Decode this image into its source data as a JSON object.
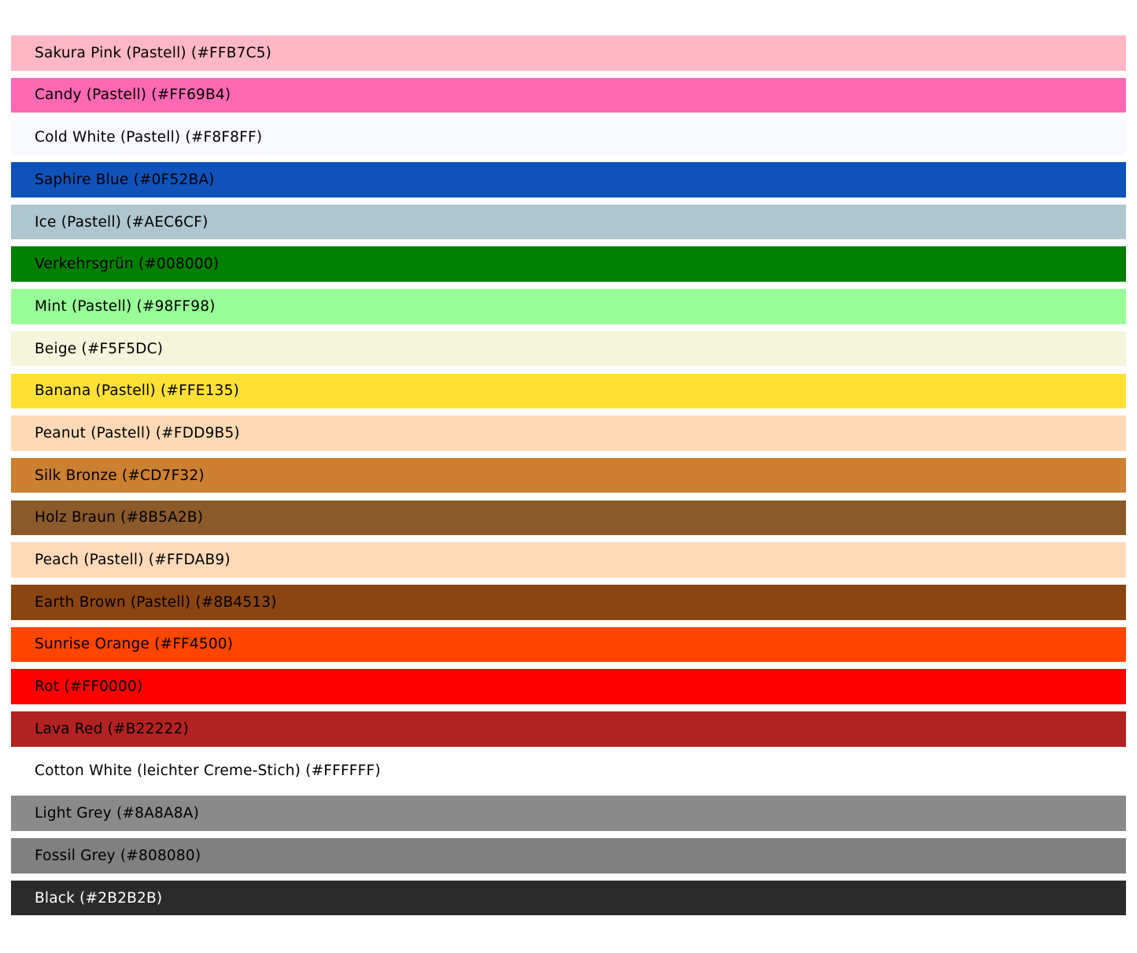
{
  "page": {
    "background": "#FFFFFF"
  },
  "palette": {
    "rows": [
      {
        "name": "Sakura Pink (Pastell)",
        "hex": "#FFB7C5",
        "label": "Sakura Pink (Pastell) (#FFB7C5)",
        "color": "#FFB7C5",
        "text_color": "#000000"
      },
      {
        "name": "Candy (Pastell)",
        "hex": "#FF69B4",
        "label": "Candy (Pastell) (#FF69B4)",
        "color": "#FF69B4",
        "text_color": "#000000"
      },
      {
        "name": "Cold White (Pastell)",
        "hex": "#F8F8FF",
        "label": "Cold White (Pastell) (#F8F8FF)",
        "color": "#F8F8FF",
        "text_color": "#000000"
      },
      {
        "name": "Saphire Blue",
        "hex": "#0F52BA",
        "label": "Saphire Blue (#0F52BA)",
        "color": "#0F52BA",
        "text_color": "#000000"
      },
      {
        "name": "Ice (Pastell)",
        "hex": "#AEC6CF",
        "label": "Ice (Pastell) (#AEC6CF)",
        "color": "#AEC6CF",
        "text_color": "#000000"
      },
      {
        "name": "Verkehrsgrün",
        "hex": "#008000",
        "label": "Verkehrsgrün (#008000)",
        "color": "#008000",
        "text_color": "#000000"
      },
      {
        "name": "Mint (Pastell)",
        "hex": "#98FF98",
        "label": "Mint (Pastell) (#98FF98)",
        "color": "#98FF98",
        "text_color": "#000000"
      },
      {
        "name": "Beige",
        "hex": "#F5F5DC",
        "label": "Beige (#F5F5DC)",
        "color": "#F5F5DC",
        "text_color": "#000000"
      },
      {
        "name": "Banana (Pastell)",
        "hex": "#FFE135",
        "label": "Banana (Pastell) (#FFE135)",
        "color": "#FFE135",
        "text_color": "#000000"
      },
      {
        "name": "Peanut (Pastell)",
        "hex": "#FDD9B5",
        "label": "Peanut (Pastell) (#FDD9B5)",
        "color": "#FDD9B5",
        "text_color": "#000000"
      },
      {
        "name": "Silk Bronze",
        "hex": "#CD7F32",
        "label": "Silk Bronze (#CD7F32)",
        "color": "#CD7F32",
        "text_color": "#000000"
      },
      {
        "name": "Holz Braun",
        "hex": "#8B5A2B",
        "label": "Holz Braun (#8B5A2B)",
        "color": "#8B5A2B",
        "text_color": "#000000"
      },
      {
        "name": "Peach (Pastell)",
        "hex": "#FFDAB9",
        "label": "Peach (Pastell) (#FFDAB9)",
        "color": "#FFDAB9",
        "text_color": "#000000"
      },
      {
        "name": "Earth Brown (Pastell)",
        "hex": "#8B4513",
        "label": "Earth Brown (Pastell) (#8B4513)",
        "color": "#8B4513",
        "text_color": "#000000"
      },
      {
        "name": "Sunrise Orange",
        "hex": "#FF4500",
        "label": "Sunrise Orange (#FF4500)",
        "color": "#FF4500",
        "text_color": "#000000"
      },
      {
        "name": "Rot",
        "hex": "#FF0000",
        "label": "Rot (#FF0000)",
        "color": "#FF0000",
        "text_color": "#000000"
      },
      {
        "name": "Lava Red",
        "hex": "#B22222",
        "label": "Lava Red (#B22222)",
        "color": "#B22222",
        "text_color": "#000000"
      },
      {
        "name": "Cotton White (leichter Creme-Stich)",
        "hex": "#FFFFFF",
        "label": "Cotton White (leichter Creme-Stich) (#FFFFFF)",
        "color": "#FFFFFF",
        "text_color": "#000000"
      },
      {
        "name": "Light Grey",
        "hex": "#8A8A8A",
        "label": "Light Grey (#8A8A8A)",
        "color": "#8A8A8A",
        "text_color": "#000000"
      },
      {
        "name": "Fossil Grey",
        "hex": "#808080",
        "label": "Fossil Grey (#808080)",
        "color": "#808080",
        "text_color": "#000000"
      },
      {
        "name": "Black",
        "hex": "#2B2B2B",
        "label": "Black (#2B2B2B)",
        "color": "#2B2B2B",
        "text_color": "#FFFFFF"
      }
    ]
  }
}
